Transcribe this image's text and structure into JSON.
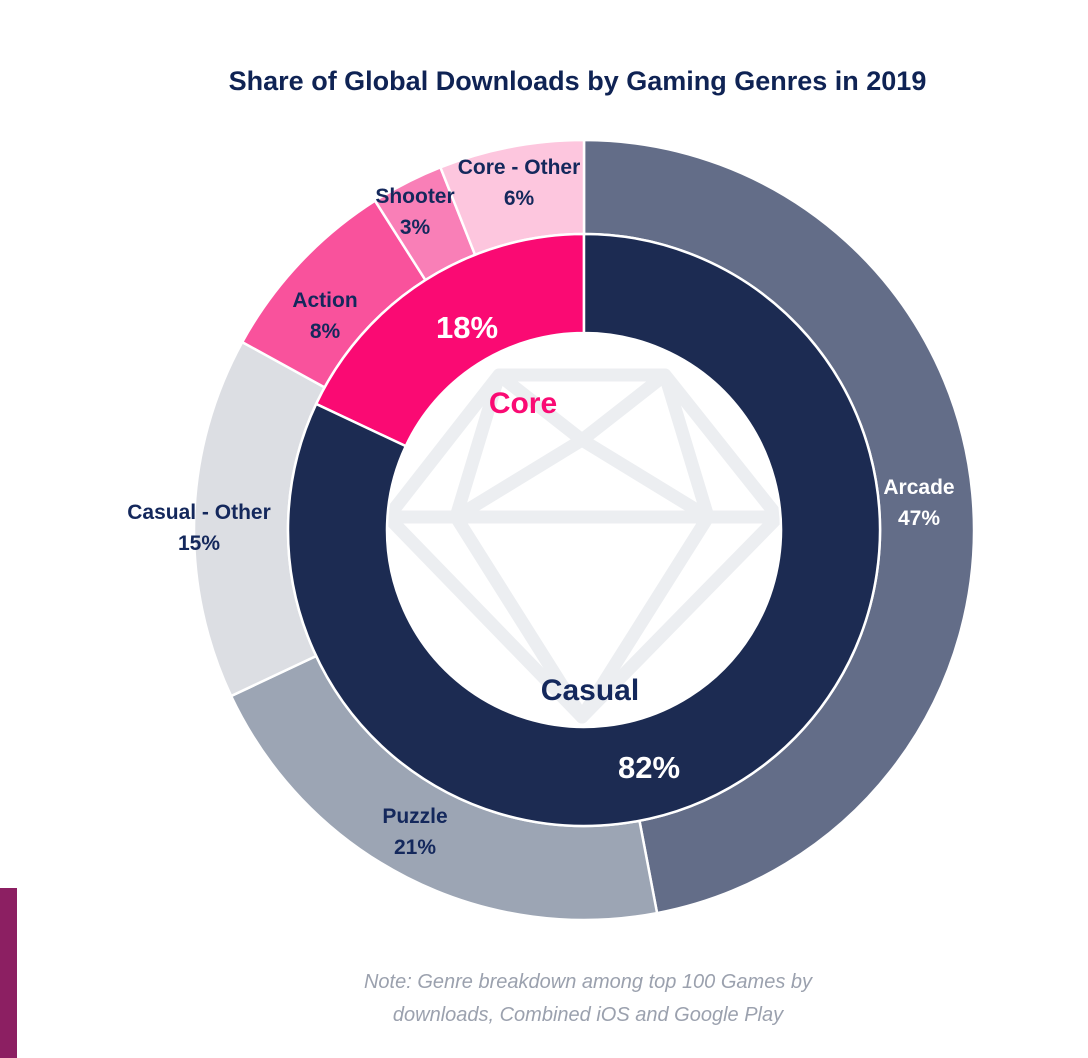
{
  "chart_data": {
    "type": "pie",
    "subtype": "nested-donut",
    "title": "Share of Global Downloads by Gaming Genres in 2019",
    "inner_ring": [
      {
        "name": "Core",
        "value": 18,
        "label": "18%",
        "color": "#fa0a73"
      },
      {
        "name": "Casual",
        "value": 82,
        "label": "82%",
        "color": "#1c2b52"
      }
    ],
    "outer_ring": [
      {
        "name": "Arcade",
        "value": 47,
        "label": "47%",
        "color": "#636d88"
      },
      {
        "name": "Puzzle",
        "value": 21,
        "label": "21%",
        "color": "#9ca5b4"
      },
      {
        "name": "Casual - Other",
        "value": 15,
        "label": "15%",
        "color": "#dcdee3"
      },
      {
        "name": "Action",
        "value": 8,
        "label": "8%",
        "color": "#f9529c"
      },
      {
        "name": "Shooter",
        "value": 3,
        "label": "3%",
        "color": "#f97fb7"
      },
      {
        "name": "Core - Other",
        "value": 6,
        "label": "6%",
        "color": "#fdc6de"
      }
    ],
    "note_lines": [
      "Note: Genre breakdown among top 100 Games by",
      "downloads, Combined iOS and Google Play"
    ]
  },
  "colors": {
    "title": "#0f2354",
    "label_dark": "#14285c",
    "core_text": "#fa0a73",
    "casual_text": "#14285c",
    "note": "#9ba1ae",
    "accent_bar": "#8c1f62",
    "watermark": "#eceef1"
  },
  "watermark_icon": "diamond-icon"
}
